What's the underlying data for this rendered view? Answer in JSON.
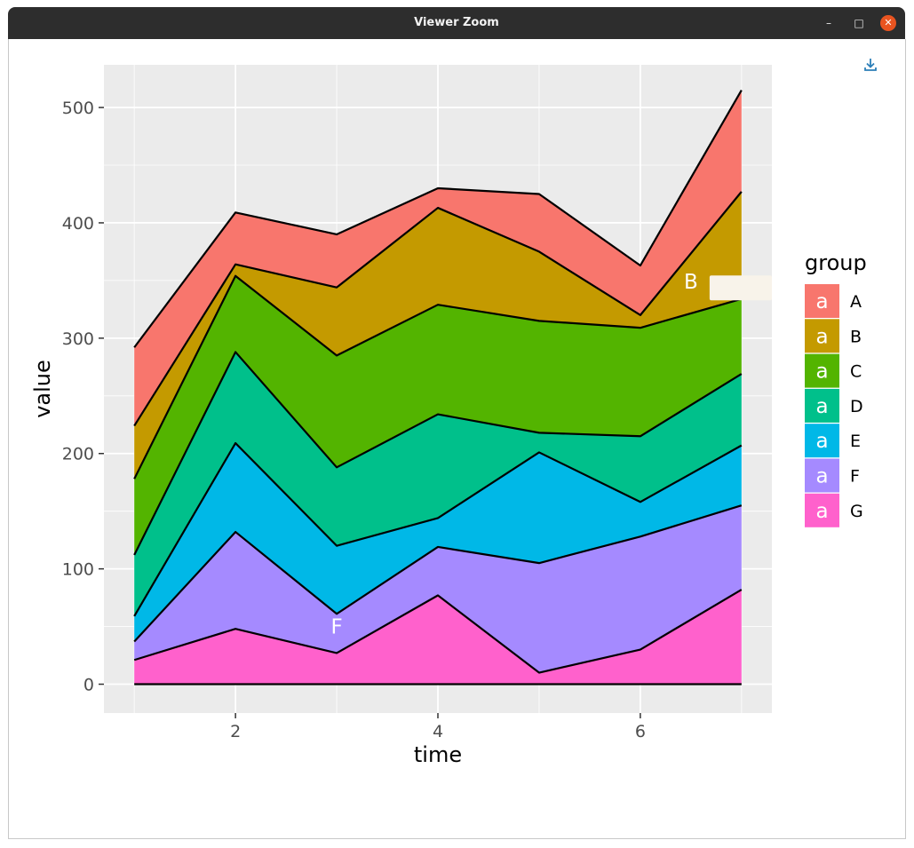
{
  "window": {
    "title": "Viewer Zoom",
    "minimize_glyph": "–",
    "maximize_glyph": "□",
    "close_glyph": "✕"
  },
  "toolbar": {
    "download_icon": "download-icon"
  },
  "colors": {
    "panel": "#ebebeb",
    "grid": "#ffffff",
    "outline": "#000000",
    "tooltip_bg": "#f8f3ea"
  },
  "chart_data": {
    "type": "area",
    "stacked": true,
    "title": "",
    "xlabel": "time",
    "ylabel": "value",
    "x": [
      1,
      2,
      3,
      4,
      5,
      6,
      7
    ],
    "xlim": [
      0.7,
      7.3
    ],
    "ylim": [
      -25,
      537
    ],
    "xticks": [
      2,
      4,
      6
    ],
    "yticks": [
      0,
      100,
      200,
      300,
      400,
      500
    ],
    "grid": true,
    "legend": {
      "title": "group",
      "position": "right",
      "key_glyph": "a"
    },
    "series": [
      {
        "name": "G",
        "color": "#FF61CC",
        "values": [
          21,
          48,
          27,
          77,
          10,
          30,
          82
        ]
      },
      {
        "name": "F",
        "color": "#A58AFF",
        "values": [
          16,
          84,
          34,
          42,
          95,
          98,
          73
        ]
      },
      {
        "name": "E",
        "color": "#00B8E7",
        "values": [
          22,
          77,
          59,
          25,
          96,
          30,
          52
        ]
      },
      {
        "name": "D",
        "color": "#00C08B",
        "values": [
          53,
          79,
          68,
          90,
          17,
          57,
          62
        ]
      },
      {
        "name": "C",
        "color": "#53B400",
        "values": [
          66,
          66,
          97,
          95,
          97,
          94,
          65
        ]
      },
      {
        "name": "B",
        "color": "#C49A00",
        "values": [
          46,
          10,
          59,
          84,
          60,
          11,
          93
        ]
      },
      {
        "name": "A",
        "color": "#F8766D",
        "values": [
          68,
          45,
          46,
          17,
          50,
          43,
          88
        ]
      }
    ],
    "annotations": [
      {
        "text": "F",
        "x": 3,
        "y": 50,
        "color": "#ffffff"
      },
      {
        "text": "B",
        "x": 6.5,
        "y": 349,
        "color": "#ffffff"
      }
    ]
  }
}
